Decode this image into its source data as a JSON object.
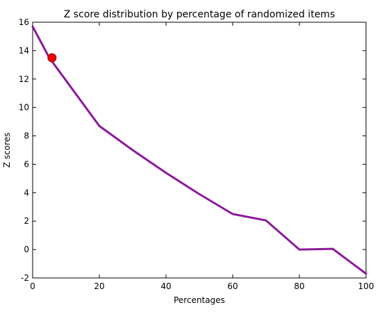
{
  "chart_data": {
    "type": "line",
    "title": "Z score distribution by percentage of randomized items",
    "xlabel": "Percentages",
    "ylabel": "Z scores",
    "xlim": [
      0,
      100
    ],
    "ylim": [
      -2,
      16
    ],
    "xticks": [
      0,
      20,
      40,
      60,
      80,
      100
    ],
    "yticks": [
      -2,
      0,
      2,
      4,
      6,
      8,
      10,
      12,
      14,
      16
    ],
    "grid": false,
    "legend": "none",
    "series": [
      {
        "color": "#8b1a9b",
        "x": [
          0,
          5,
          10,
          20,
          30,
          40,
          50,
          60,
          70,
          80,
          90,
          100
        ],
        "y": [
          15.7,
          13.5,
          11.9,
          8.7,
          7.0,
          5.4,
          3.9,
          2.5,
          2.05,
          0.0,
          0.05,
          -1.7
        ]
      }
    ],
    "highlight_point": {
      "x": 5.8,
      "y": 13.5,
      "color": "#ee0000"
    }
  }
}
